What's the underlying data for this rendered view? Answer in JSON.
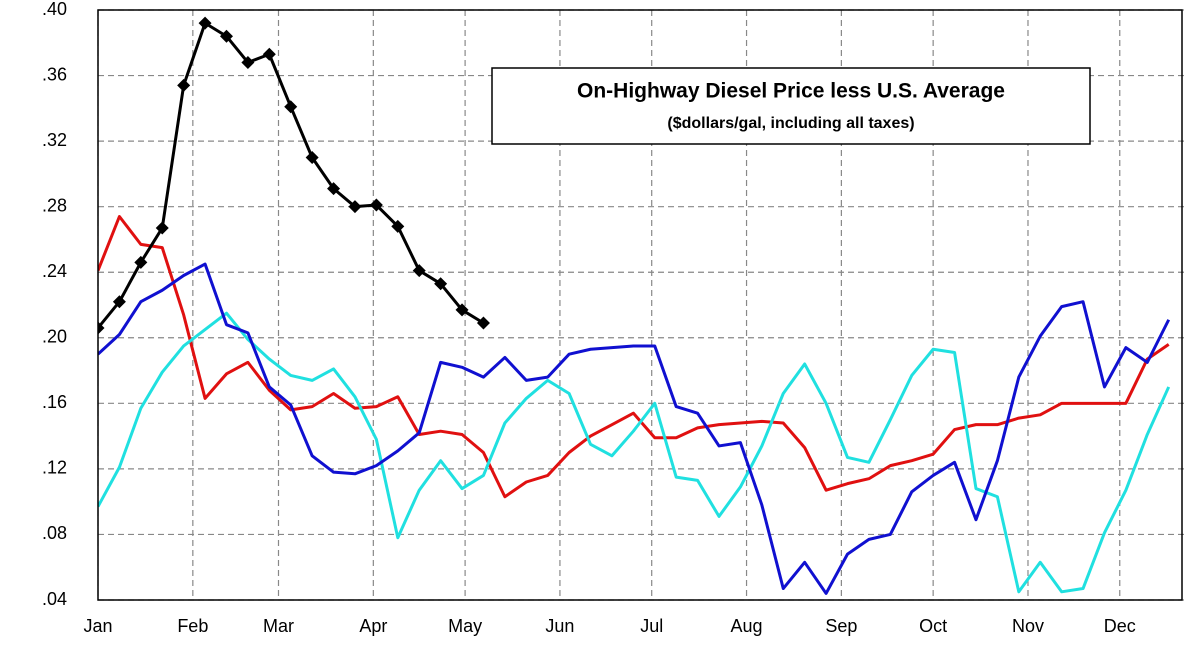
{
  "chart_data": {
    "type": "line",
    "title": "On-Highway Diesel Price  less U.S. Average",
    "subtitle": "($dollars/gal, including all taxes)",
    "x": [
      0,
      7,
      14,
      21,
      28,
      35,
      42,
      49,
      56,
      63,
      70,
      77,
      84,
      91,
      98,
      105,
      112,
      119,
      126,
      133,
      140,
      147,
      154,
      161,
      168,
      175,
      182,
      189,
      196,
      203,
      210,
      217,
      224,
      231,
      238,
      245,
      252,
      259,
      266,
      273,
      280,
      287,
      294,
      301,
      308,
      315,
      322,
      329,
      336,
      343,
      350
    ],
    "xlim": [
      0,
      355
    ],
    "xticks": [
      {
        "value": 0,
        "label": "Jan"
      },
      {
        "value": 31,
        "label": "Feb"
      },
      {
        "value": 59,
        "label": "Mar"
      },
      {
        "value": 90,
        "label": "Apr"
      },
      {
        "value": 120,
        "label": "May"
      },
      {
        "value": 151,
        "label": "Jun"
      },
      {
        "value": 181,
        "label": "Jul"
      },
      {
        "value": 212,
        "label": "Aug"
      },
      {
        "value": 243,
        "label": "Sep"
      },
      {
        "value": 273,
        "label": "Oct"
      },
      {
        "value": 304,
        "label": "Nov"
      },
      {
        "value": 334,
        "label": "Dec"
      }
    ],
    "ylim": [
      0.04,
      0.4
    ],
    "yticks": [
      {
        "value": 0.04,
        "label": ".04"
      },
      {
        "value": 0.08,
        "label": ".08"
      },
      {
        "value": 0.12,
        "label": ".12"
      },
      {
        "value": 0.16,
        "label": ".16"
      },
      {
        "value": 0.2,
        "label": ".20"
      },
      {
        "value": 0.24,
        "label": ".24"
      },
      {
        "value": 0.28,
        "label": ".28"
      },
      {
        "value": 0.32,
        "label": ".32"
      },
      {
        "value": 0.36,
        "label": ".36"
      },
      {
        "value": 0.4,
        "label": ".40"
      }
    ],
    "grid": true,
    "series": [
      {
        "color": "#e01010",
        "values": [
          0.241,
          0.274,
          0.257,
          0.255,
          0.214,
          0.163,
          0.178,
          0.185,
          0.168,
          0.156,
          0.158,
          0.166,
          0.157,
          0.158,
          0.164,
          0.141,
          0.143,
          0.141,
          0.13,
          0.103,
          0.112,
          0.116,
          0.13,
          0.14,
          0.147,
          0.154,
          0.139,
          0.139,
          0.145,
          0.147,
          0.148,
          0.149,
          0.148,
          0.133,
          0.107,
          0.111,
          0.114,
          0.122,
          0.125,
          0.129,
          0.144,
          0.147,
          0.147,
          0.151,
          0.153,
          0.16,
          0.16,
          0.16,
          0.16,
          0.187,
          0.196
        ]
      },
      {
        "color": "#20e0e0",
        "values": [
          0.097,
          0.121,
          0.157,
          0.179,
          0.195,
          0.205,
          0.215,
          0.199,
          0.187,
          0.177,
          0.174,
          0.181,
          0.164,
          0.138,
          0.078,
          0.107,
          0.125,
          0.108,
          0.116,
          0.148,
          0.163,
          0.174,
          0.166,
          0.135,
          0.128,
          0.143,
          0.16,
          0.115,
          0.113,
          0.091,
          0.109,
          0.134,
          0.166,
          0.184,
          0.16,
          0.127,
          0.124,
          0.15,
          0.177,
          0.193,
          0.191,
          0.108,
          0.103,
          0.045,
          0.063,
          0.045,
          0.047,
          0.081,
          0.107,
          0.141,
          0.17
        ]
      },
      {
        "color": "#1010d0",
        "values": [
          0.19,
          0.202,
          0.222,
          0.229,
          0.238,
          0.245,
          0.208,
          0.203,
          0.17,
          0.159,
          0.128,
          0.118,
          0.117,
          0.122,
          0.131,
          0.142,
          0.185,
          0.182,
          0.176,
          0.188,
          0.174,
          0.176,
          0.19,
          0.193,
          0.194,
          0.195,
          0.195,
          0.158,
          0.154,
          0.134,
          0.136,
          0.098,
          0.047,
          0.063,
          0.044,
          0.068,
          0.077,
          0.08,
          0.106,
          0.116,
          0.124,
          0.089,
          0.125,
          0.176,
          0.201,
          0.219,
          0.222,
          0.17,
          0.194,
          0.185,
          0.211
        ]
      },
      {
        "color": "#000000",
        "marker": "diamond",
        "values": [
          0.206,
          0.222,
          0.246,
          0.267,
          0.354,
          0.392,
          0.384,
          0.368,
          0.373,
          0.341,
          0.31,
          0.291,
          0.28,
          0.281,
          0.268,
          0.241,
          0.233,
          0.217,
          0.209,
          null,
          null,
          null,
          null,
          null,
          null,
          null,
          null,
          null,
          null,
          null,
          null,
          null,
          null,
          null,
          null,
          null,
          null,
          null,
          null,
          null,
          null,
          null,
          null,
          null,
          null,
          null,
          null,
          null,
          null,
          null,
          null
        ]
      }
    ]
  }
}
